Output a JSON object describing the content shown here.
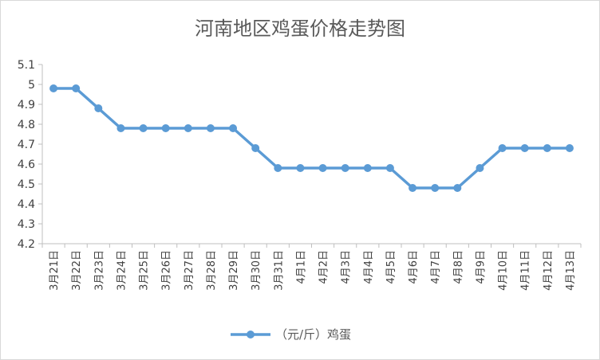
{
  "chart_data": {
    "type": "line",
    "title": "河南地区鸡蛋价格走势图",
    "xlabel": "",
    "ylabel": "",
    "categories": [
      "3月21日",
      "3月22日",
      "3月23日",
      "3月24日",
      "3月25日",
      "3月26日",
      "3月27日",
      "3月28日",
      "3月29日",
      "3月30日",
      "3月31日",
      "4月1日",
      "4月2日",
      "4月3日",
      "4月4日",
      "4月5日",
      "4月6日",
      "4月7日",
      "4月8日",
      "4月9日",
      "4月10日",
      "4月11日",
      "4月12日",
      "4月13日"
    ],
    "series": [
      {
        "name": "（元/斤）鸡蛋",
        "color": "#5b9bd5",
        "values": [
          4.98,
          4.98,
          4.88,
          4.78,
          4.78,
          4.78,
          4.78,
          4.78,
          4.78,
          4.68,
          4.58,
          4.58,
          4.58,
          4.58,
          4.58,
          4.58,
          4.48,
          4.48,
          4.48,
          4.58,
          4.68,
          4.68,
          4.68,
          4.68
        ]
      }
    ],
    "ylim": [
      4.2,
      5.1
    ],
    "yticks": [
      "4.2",
      "4.3",
      "4.4",
      "4.5",
      "4.6",
      "4.7",
      "4.8",
      "4.9",
      "5",
      "5.1"
    ],
    "grid": false,
    "legend": "bottom"
  }
}
